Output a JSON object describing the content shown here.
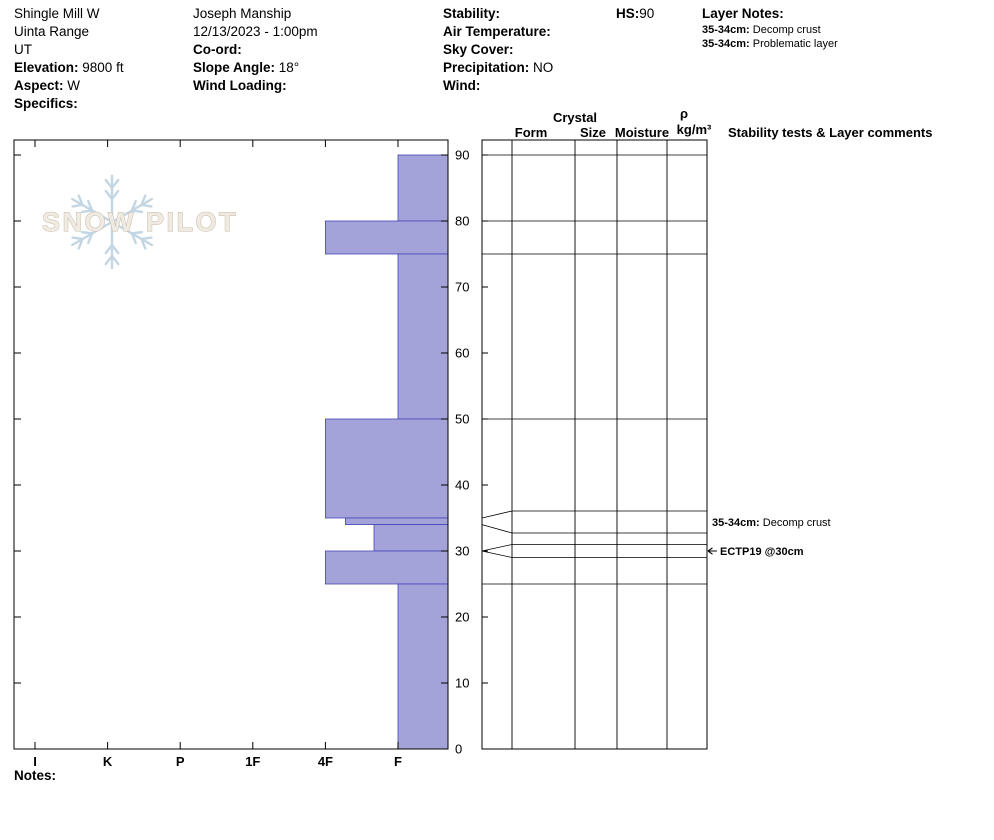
{
  "site": {
    "name": "Shingle Mill W",
    "region": "Uinta Range",
    "state": "UT",
    "elevation_label": "Elevation:",
    "elevation_value": "9800 ft",
    "aspect_label": "Aspect:",
    "aspect_value": "W",
    "specifics_label": "Specifics:"
  },
  "observer": {
    "name": "Joseph Manship",
    "datetime": "12/13/2023 - 1:00pm",
    "coord_label": "Co-ord:",
    "slope_angle_label": "Slope Angle:",
    "slope_angle_value": "18°",
    "wind_loading_label": "Wind Loading:"
  },
  "conditions": {
    "stability_label": "Stability:",
    "air_temperature_label": "Air Temperature:",
    "sky_cover_label": "Sky Cover:",
    "precipitation_label": "Precipitation:",
    "precipitation_value": "NO",
    "wind_label": "Wind:"
  },
  "hs": {
    "label": "HS:",
    "value": "90"
  },
  "layer_notes": {
    "title": "Layer Notes:",
    "items": [
      {
        "depth": "35-34cm:",
        "text": "Decomp crust"
      },
      {
        "depth": "35-34cm:",
        "text": "Problematic layer"
      }
    ]
  },
  "columns": {
    "crystal": "Crystal",
    "form": "Form",
    "size": "Size",
    "moisture": "Moisture",
    "rho": "ρ",
    "rho_units": "kg/m³",
    "comments": "Stability tests & Layer comments"
  },
  "watermark": "SNOW PILOT",
  "notes_label": "Notes:",
  "chart_data": {
    "type": "bar",
    "subtype": "snow-hardness-profile",
    "title": "Snow pit hardness profile",
    "hs_cm": 90,
    "depth_axis": {
      "unit": "cm",
      "ticks": [
        0,
        10,
        20,
        30,
        40,
        50,
        60,
        70,
        80,
        90
      ],
      "min": 0,
      "max": 90
    },
    "hardness_axis": {
      "categories": [
        "I",
        "K",
        "P",
        "1F",
        "4F",
        "F"
      ],
      "note": "hardness increases right-to-left"
    },
    "layers": [
      {
        "top_cm": 90,
        "bottom_cm": 80,
        "hardness": "F"
      },
      {
        "top_cm": 80,
        "bottom_cm": 75,
        "hardness": "4F"
      },
      {
        "top_cm": 75,
        "bottom_cm": 50,
        "hardness": "F"
      },
      {
        "top_cm": 50,
        "bottom_cm": 35,
        "hardness": "4F"
      },
      {
        "top_cm": 35,
        "bottom_cm": 34,
        "hardness": "4F-"
      },
      {
        "top_cm": 34,
        "bottom_cm": 30,
        "hardness": "F+"
      },
      {
        "top_cm": 30,
        "bottom_cm": 25,
        "hardness": "4F"
      },
      {
        "top_cm": 25,
        "bottom_cm": 0,
        "hardness": "F"
      }
    ],
    "annotations": [
      {
        "kind": "layer-comment",
        "flare_top_cm": 35,
        "flare_bottom_cm": 34,
        "label_bold": "35-34cm:",
        "label": " Decomp crust"
      },
      {
        "kind": "stability-test",
        "at_cm": 30,
        "arrow": true,
        "label_bold": "ECTP19 @30cm",
        "label": ""
      }
    ],
    "colors": {
      "bar_fill": "#a3a3da",
      "bar_stroke": "#4646b4",
      "frame": "#000000",
      "watermark_flake": "#bdd2e2",
      "watermark_text_fill": "#efe9df",
      "watermark_text_stroke": "#c2b19b"
    }
  }
}
